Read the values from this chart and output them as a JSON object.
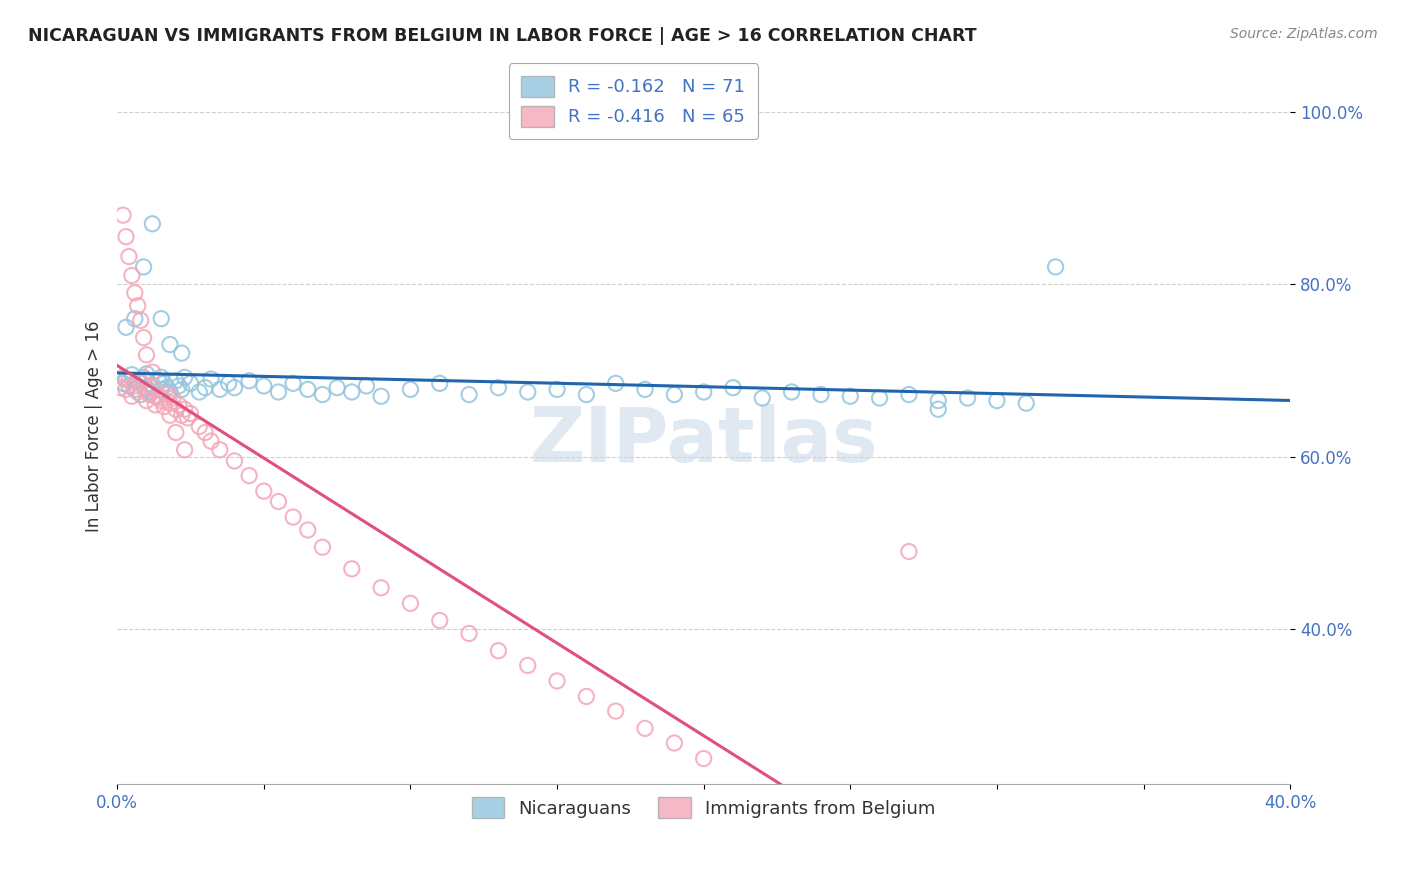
{
  "title": "NICARAGUAN VS IMMIGRANTS FROM BELGIUM IN LABOR FORCE | AGE > 16 CORRELATION CHART",
  "source": "Source: ZipAtlas.com",
  "ylabel": "In Labor Force | Age > 16",
  "xlim": [
    0.0,
    0.4
  ],
  "ylim": [
    0.22,
    1.05
  ],
  "legend_blue_label": "Nicaraguans",
  "legend_pink_label": "Immigrants from Belgium",
  "R_blue": -0.162,
  "N_blue": 71,
  "R_pink": -0.416,
  "N_pink": 65,
  "blue_color": "#92c5de",
  "pink_color": "#f4a6b8",
  "blue_line_color": "#2166ac",
  "pink_line_color": "#e0507a",
  "watermark": "ZIPatlas",
  "tick_color": "#4472C4",
  "grid_color": "#d0d0d0",
  "blue_x": [
    0.002,
    0.003,
    0.004,
    0.005,
    0.006,
    0.007,
    0.008,
    0.009,
    0.01,
    0.01,
    0.011,
    0.012,
    0.013,
    0.014,
    0.015,
    0.015,
    0.016,
    0.017,
    0.018,
    0.02,
    0.021,
    0.022,
    0.023,
    0.025,
    0.028,
    0.03,
    0.032,
    0.035,
    0.038,
    0.04,
    0.045,
    0.05,
    0.055,
    0.06,
    0.065,
    0.07,
    0.075,
    0.08,
    0.085,
    0.09,
    0.1,
    0.11,
    0.12,
    0.13,
    0.14,
    0.15,
    0.16,
    0.17,
    0.18,
    0.19,
    0.2,
    0.21,
    0.22,
    0.23,
    0.24,
    0.25,
    0.26,
    0.27,
    0.28,
    0.29,
    0.3,
    0.31,
    0.003,
    0.006,
    0.009,
    0.012,
    0.015,
    0.018,
    0.022,
    0.28,
    0.32
  ],
  "blue_y": [
    0.685,
    0.69,
    0.682,
    0.695,
    0.678,
    0.688,
    0.672,
    0.692,
    0.68,
    0.696,
    0.675,
    0.683,
    0.67,
    0.688,
    0.692,
    0.678,
    0.685,
    0.68,
    0.675,
    0.688,
    0.682,
    0.678,
    0.692,
    0.685,
    0.675,
    0.68,
    0.69,
    0.678,
    0.685,
    0.68,
    0.688,
    0.682,
    0.675,
    0.685,
    0.678,
    0.672,
    0.68,
    0.675,
    0.682,
    0.67,
    0.678,
    0.685,
    0.672,
    0.68,
    0.675,
    0.678,
    0.672,
    0.685,
    0.678,
    0.672,
    0.675,
    0.68,
    0.668,
    0.675,
    0.672,
    0.67,
    0.668,
    0.672,
    0.665,
    0.668,
    0.665,
    0.662,
    0.75,
    0.76,
    0.82,
    0.87,
    0.76,
    0.73,
    0.72,
    0.655,
    0.82
  ],
  "pink_x": [
    0.001,
    0.002,
    0.003,
    0.004,
    0.005,
    0.006,
    0.007,
    0.008,
    0.009,
    0.01,
    0.01,
    0.011,
    0.012,
    0.013,
    0.014,
    0.015,
    0.016,
    0.017,
    0.018,
    0.019,
    0.02,
    0.021,
    0.022,
    0.023,
    0.024,
    0.025,
    0.028,
    0.03,
    0.032,
    0.035,
    0.04,
    0.045,
    0.05,
    0.055,
    0.06,
    0.065,
    0.07,
    0.08,
    0.09,
    0.1,
    0.11,
    0.12,
    0.13,
    0.14,
    0.15,
    0.16,
    0.17,
    0.18,
    0.19,
    0.2,
    0.002,
    0.003,
    0.004,
    0.005,
    0.006,
    0.007,
    0.008,
    0.009,
    0.01,
    0.012,
    0.015,
    0.018,
    0.02,
    0.023,
    0.27
  ],
  "pink_y": [
    0.68,
    0.692,
    0.678,
    0.688,
    0.67,
    0.682,
    0.675,
    0.685,
    0.69,
    0.678,
    0.665,
    0.672,
    0.68,
    0.66,
    0.67,
    0.665,
    0.658,
    0.672,
    0.662,
    0.668,
    0.655,
    0.66,
    0.648,
    0.655,
    0.645,
    0.65,
    0.635,
    0.628,
    0.618,
    0.608,
    0.595,
    0.578,
    0.56,
    0.548,
    0.53,
    0.515,
    0.495,
    0.47,
    0.448,
    0.43,
    0.41,
    0.395,
    0.375,
    0.358,
    0.34,
    0.322,
    0.305,
    0.285,
    0.268,
    0.25,
    0.88,
    0.855,
    0.832,
    0.81,
    0.79,
    0.775,
    0.758,
    0.738,
    0.718,
    0.698,
    0.668,
    0.648,
    0.628,
    0.608,
    0.49
  ]
}
